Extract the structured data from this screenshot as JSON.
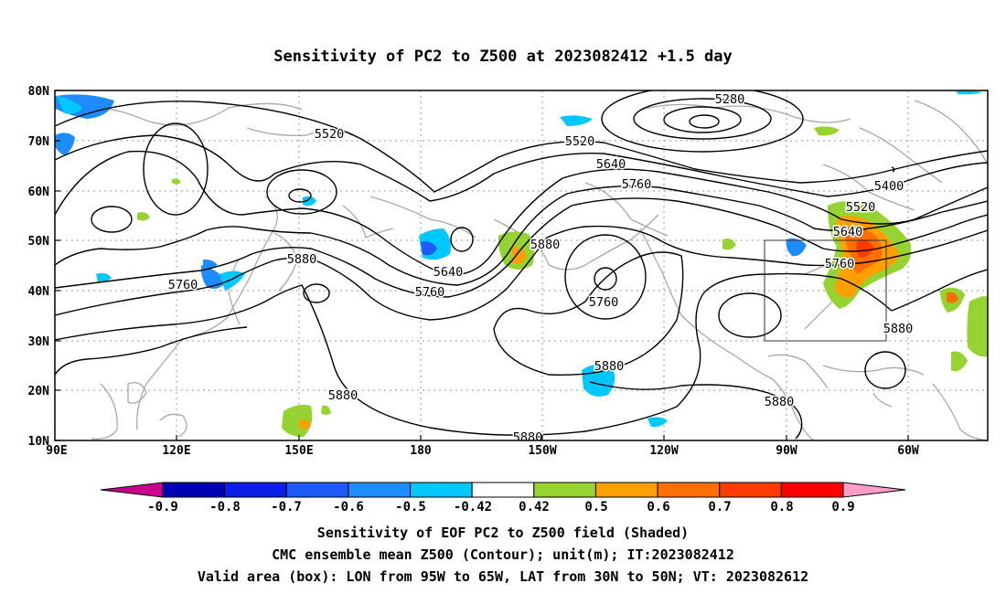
{
  "map": {
    "title": "Sensitivity of PC2 to Z500 at 2023082412 +1.5 day",
    "lat_labels": [
      "80N",
      "70N",
      "60N",
      "50N",
      "40N",
      "30N",
      "20N",
      "10N"
    ],
    "lon_labels": [
      "90E",
      "120E",
      "150E",
      "180",
      "150W",
      "120W",
      "90W",
      "60W"
    ],
    "extent": {
      "lon_min_east": 90,
      "lon_max_east": 310,
      "lat_min": 10,
      "lat_max": 80
    },
    "valid_box": {
      "lon_west": "95W",
      "lon_east": "65W",
      "lat_south": "30N",
      "lat_north": "50N"
    },
    "contour_labels": [
      {
        "id": "c5280",
        "text": "5280"
      },
      {
        "id": "c5520a",
        "text": "5520"
      },
      {
        "id": "c5520b",
        "text": "5520"
      },
      {
        "id": "c5520c",
        "text": "5520"
      },
      {
        "id": "c5400",
        "text": "5400"
      },
      {
        "id": "c5640a",
        "text": "5640"
      },
      {
        "id": "c5640b",
        "text": "5640"
      },
      {
        "id": "c5640c",
        "text": "5640"
      },
      {
        "id": "c5760a",
        "text": "5760"
      },
      {
        "id": "c5760b",
        "text": "5760"
      },
      {
        "id": "c5760c",
        "text": "5760"
      },
      {
        "id": "c5760d",
        "text": "5760"
      },
      {
        "id": "c5760e",
        "text": "5760"
      },
      {
        "id": "c5880a",
        "text": "5880"
      },
      {
        "id": "c5880b",
        "text": "5880"
      },
      {
        "id": "c5880c",
        "text": "5880"
      },
      {
        "id": "c5880d",
        "text": "5880"
      },
      {
        "id": "c5880e",
        "text": "5880"
      },
      {
        "id": "c5880f",
        "text": "5880"
      },
      {
        "id": "c5880g",
        "text": "5880"
      }
    ]
  },
  "colorbar": {
    "labels": [
      "-0.9",
      "-0.8",
      "-0.7",
      "-0.6",
      "-0.5",
      "-0.42",
      "0.42",
      "0.5",
      "0.6",
      "0.7",
      "0.8",
      "0.9"
    ],
    "colors": [
      "#0000b4",
      "#0a1ee6",
      "#1e5aff",
      "#1e8cff",
      "#00c8ff",
      "#ffffff",
      "#96d232",
      "#ffa000",
      "#ff6e00",
      "#ff3c00",
      "#ff0000"
    ],
    "low_extend_color": "#c8008c",
    "high_extend_color": "#ff9ec8"
  },
  "captions": {
    "line1": "Sensitivity of EOF PC2 to Z500 field (Shaded)",
    "line2": "CMC ensemble mean Z500 (Contour); unit(m); IT:2023082412",
    "line3": "Valid area (box): LON from 95W to 65W, LAT from 30N to 50N; VT: 2023082612"
  }
}
